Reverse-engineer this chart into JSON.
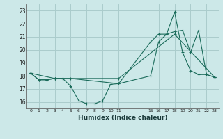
{
  "background_color": "#cce8e8",
  "grid_color": "#aacccc",
  "line_color": "#1a6b5a",
  "xlabel": "Humidex (Indice chaleur)",
  "xlim": [
    -0.5,
    23.5
  ],
  "ylim": [
    15.5,
    23.5
  ],
  "xticks": [
    0,
    1,
    2,
    3,
    4,
    5,
    6,
    7,
    8,
    9,
    10,
    11,
    15,
    16,
    17,
    18,
    19,
    20,
    21,
    22,
    23
  ],
  "yticks": [
    16,
    17,
    18,
    19,
    20,
    21,
    22,
    23
  ],
  "series": [
    {
      "x": [
        0,
        1,
        2,
        3,
        4,
        5,
        6,
        7,
        8,
        9,
        10,
        11,
        15,
        16,
        17,
        18,
        19,
        20,
        21,
        22,
        23
      ],
      "y": [
        18.2,
        17.7,
        17.7,
        17.8,
        17.8,
        17.2,
        16.1,
        15.85,
        15.85,
        16.1,
        17.35,
        17.4,
        18.0,
        20.6,
        21.2,
        22.9,
        19.8,
        18.4,
        18.1,
        18.1,
        17.9
      ]
    },
    {
      "x": [
        0,
        1,
        2,
        3,
        4,
        5,
        11,
        15,
        16,
        17,
        18,
        19,
        20,
        21,
        22,
        23
      ],
      "y": [
        18.2,
        17.7,
        17.7,
        17.8,
        17.8,
        17.8,
        17.4,
        20.6,
        21.2,
        21.2,
        21.4,
        21.5,
        19.8,
        21.5,
        18.1,
        17.9
      ]
    },
    {
      "x": [
        0,
        3,
        11,
        18,
        23
      ],
      "y": [
        18.2,
        17.8,
        17.8,
        21.2,
        17.9
      ]
    }
  ]
}
